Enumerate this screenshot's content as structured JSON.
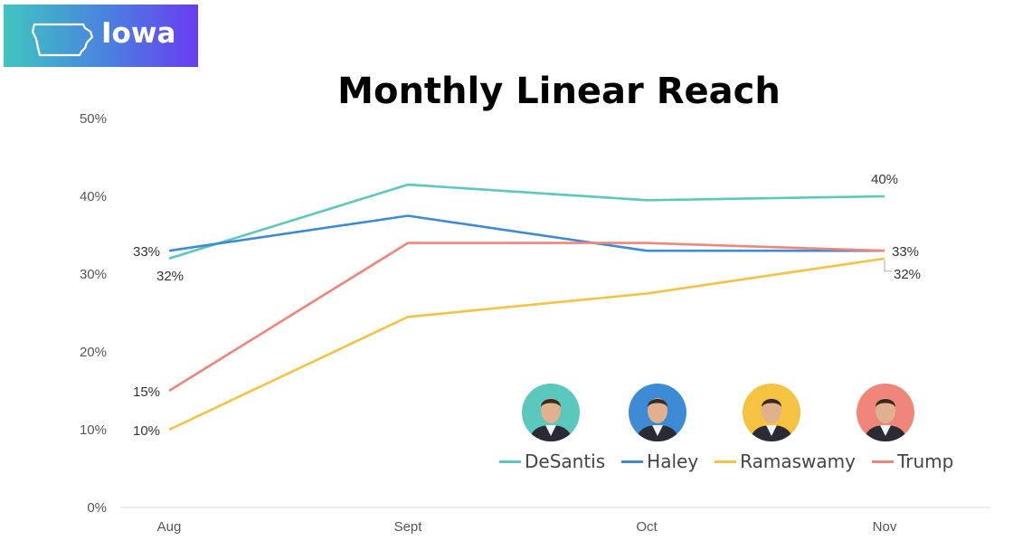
{
  "badge": {
    "state_label": "Iowa",
    "icon": "iowa-state-outline-icon"
  },
  "chart_data": {
    "type": "line",
    "title": "Monthly Linear Reach",
    "categories": [
      "Aug",
      "Sept",
      "Oct",
      "Nov"
    ],
    "ylim": [
      0,
      50
    ],
    "yticks": [
      "0%",
      "10%",
      "20%",
      "30%",
      "40%",
      "50%"
    ],
    "grid": false,
    "legend_position": "bottom-right",
    "series": [
      {
        "name": "DeSantis",
        "color": "#5ac8bc",
        "values": [
          32,
          41.5,
          39.5,
          40
        ]
      },
      {
        "name": "Haley",
        "color": "#3d8bd4",
        "values": [
          33,
          37.5,
          33,
          33
        ]
      },
      {
        "name": "Ramaswamy",
        "color": "#f5c242",
        "values": [
          10,
          24.5,
          27.5,
          32
        ]
      },
      {
        "name": "Trump",
        "color": "#f0857a",
        "values": [
          15,
          34,
          34,
          33
        ]
      }
    ],
    "data_labels": [
      {
        "text": "33%",
        "series": "Haley",
        "index": 0
      },
      {
        "text": "32%",
        "series": "DeSantis",
        "index": 0
      },
      {
        "text": "15%",
        "series": "Trump",
        "index": 0
      },
      {
        "text": "10%",
        "series": "Ramaswamy",
        "index": 0
      },
      {
        "text": "40%",
        "series": "DeSantis",
        "index": 3
      },
      {
        "text": "33%",
        "series": "Trump",
        "index": 3
      },
      {
        "text": "32%",
        "series": "Ramaswamy",
        "index": 3
      }
    ]
  },
  "avatars": [
    {
      "candidate": "DeSantis",
      "bg": "#5ac8bc"
    },
    {
      "candidate": "Haley",
      "bg": "#3d8bd4"
    },
    {
      "candidate": "Ramaswamy",
      "bg": "#f5c242"
    },
    {
      "candidate": "Trump",
      "bg": "#f0857a"
    }
  ]
}
